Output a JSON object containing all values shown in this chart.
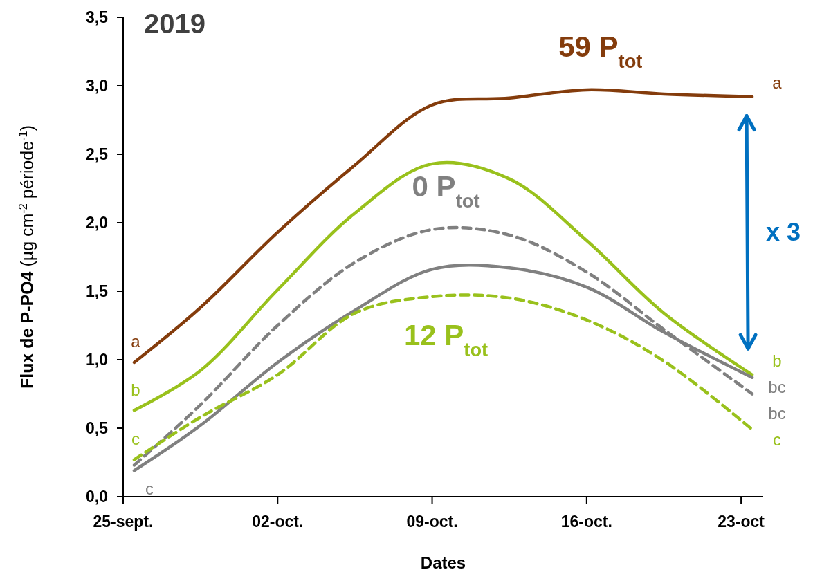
{
  "chart_data": {
    "type": "line",
    "title": "2019",
    "xlabel": "Dates",
    "ylabel": "Flux de P-PO4 (µg cm$^{-2}$ période$^{-1}$)",
    "x": [
      "2019-09-25T12:00",
      "2019-09-28T12:00",
      "2019-10-02T00:00",
      "2019-10-05T12:00",
      "2019-10-09T00:00",
      "2019-10-12T12:00",
      "2019-10-16T00:00",
      "2019-10-19T12:00",
      "2019-10-23T12:00"
    ],
    "series": [
      {
        "name": "59 P$_{tot}$",
        "color": "#843c0c",
        "line_style": "solid",
        "values": [
          0.98,
          1.38,
          1.93,
          2.42,
          2.86,
          2.91,
          2.97,
          2.94,
          2.92
        ],
        "value_labels": [
          "a",
          null,
          null,
          null,
          null,
          null,
          null,
          null,
          "a"
        ]
      },
      {
        "color": "#99c11c",
        "line_style": "solid",
        "values": [
          0.63,
          0.92,
          1.51,
          2.07,
          2.43,
          2.32,
          1.87,
          1.34,
          0.89
        ],
        "value_labels": [
          "b",
          null,
          null,
          null,
          null,
          null,
          null,
          null,
          "b"
        ]
      },
      {
        "name": "0 P$_{tot}$",
        "color": "#808080",
        "line_style": "dashed",
        "values": [
          0.23,
          0.67,
          1.25,
          1.71,
          1.95,
          1.91,
          1.64,
          1.22,
          0.75
        ],
        "value_labels": [
          "c",
          null,
          null,
          null,
          null,
          null,
          null,
          null,
          "bc"
        ]
      },
      {
        "color": "#808080",
        "line_style": "solid",
        "values": [
          0.19,
          0.52,
          0.98,
          1.36,
          1.66,
          1.67,
          1.53,
          1.2,
          0.87
        ],
        "value_labels": [
          null,
          null,
          null,
          null,
          null,
          null,
          null,
          null,
          "bc"
        ]
      },
      {
        "name": "12 P$_{tot}$",
        "color": "#99c11c",
        "line_style": "dashed",
        "values": [
          0.27,
          0.58,
          0.89,
          1.34,
          1.46,
          1.45,
          1.29,
          0.99,
          0.49
        ],
        "value_labels": [
          "c",
          null,
          null,
          null,
          null,
          null,
          null,
          null,
          "c"
        ]
      }
    ],
    "annotations": [
      "x 3"
    ],
    "xlim": [
      "2019-09-25",
      "2019-10-24"
    ],
    "xticks": [
      {
        "value": "2019-09-25",
        "label": "25-sept."
      },
      {
        "value": "2019-10-02",
        "label": "02-oct."
      },
      {
        "value": "2019-10-09",
        "label": "09-oct."
      },
      {
        "value": "2019-10-16",
        "label": "16-oct."
      },
      {
        "value": "2019-10-23",
        "label": "23-oct"
      }
    ],
    "ylim": [
      0,
      3.5
    ],
    "yticks": [
      {
        "value": 0,
        "label": "0,0"
      },
      {
        "value": 0.5,
        "label": "0,5"
      },
      {
        "value": 1,
        "label": "1,0"
      },
      {
        "value": 1.5,
        "label": "1,5"
      },
      {
        "value": 2,
        "label": "2,0"
      },
      {
        "value": 2.5,
        "label": "2,5"
      },
      {
        "value": 3,
        "label": "3,0"
      },
      {
        "value": 3.5,
        "label": "3,5"
      }
    ]
  }
}
